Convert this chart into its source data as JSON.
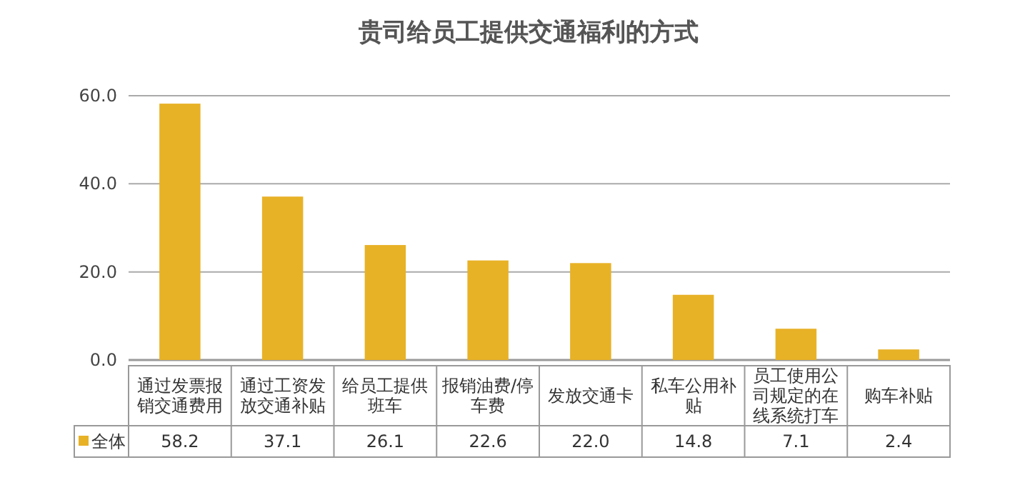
{
  "chart_data": {
    "type": "bar",
    "title": "贵司给员工提供交通福利的方式",
    "categories": [
      "通过发票报销交通费用",
      "通过工资发放交通补贴",
      "给员工提供班车",
      "报销油费/停车费",
      "发放交通卡",
      "私车公用补贴",
      "员工使用公司规定的在线系统打车",
      "购车补贴"
    ],
    "series": [
      {
        "name": "全体",
        "color": "#e8b227",
        "values": [
          58.2,
          37.1,
          26.1,
          22.6,
          22.0,
          14.8,
          7.1,
          2.4
        ],
        "value_labels": [
          "58.2",
          "37.1",
          "26.1",
          "22.6",
          "22.0",
          "14.8",
          "7.1",
          "2.4"
        ]
      }
    ],
    "ylim": [
      0,
      60
    ],
    "yticks": [
      {
        "value": 0,
        "label": "0.0"
      },
      {
        "value": 20,
        "label": "20.0"
      },
      {
        "value": 40,
        "label": "40.0"
      },
      {
        "value": 60,
        "label": "60.0"
      }
    ],
    "grid": "y",
    "legend": "bottom"
  }
}
